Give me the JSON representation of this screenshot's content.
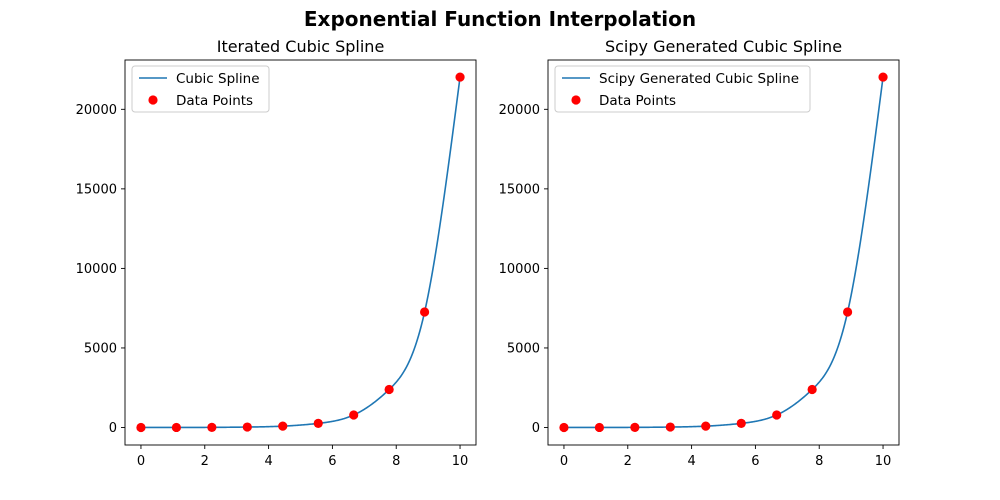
{
  "figure": {
    "title": "Exponential Function Interpolation"
  },
  "chart_data": [
    {
      "type": "line",
      "title": "Iterated Cubic Spline",
      "xlabel": "",
      "ylabel": "",
      "xlim": [
        -0.5,
        10.5
      ],
      "ylim": [
        -1100,
        23100
      ],
      "xticks": [
        0,
        2,
        4,
        6,
        8,
        10
      ],
      "yticks": [
        0,
        5000,
        10000,
        15000,
        20000
      ],
      "grid": false,
      "legend": {
        "position": "upper-left",
        "entries": [
          "Cubic Spline",
          "Data Points"
        ]
      },
      "series": [
        {
          "name": "Cubic Spline",
          "kind": "line",
          "color": "#1f77b4",
          "interpolates": "Data Points"
        },
        {
          "name": "Data Points",
          "kind": "scatter",
          "color": "#ff0000",
          "x": [
            0,
            1.111,
            2.222,
            3.333,
            4.444,
            5.556,
            6.667,
            7.778,
            8.889,
            10
          ],
          "y": [
            1,
            3,
            9,
            28,
            85,
            259,
            786,
            2389,
            7259,
            22026
          ]
        }
      ]
    },
    {
      "type": "line",
      "title": "Scipy Generated Cubic Spline",
      "xlabel": "",
      "ylabel": "",
      "xlim": [
        -0.5,
        10.5
      ],
      "ylim": [
        -1100,
        23100
      ],
      "xticks": [
        0,
        2,
        4,
        6,
        8,
        10
      ],
      "yticks": [
        0,
        5000,
        10000,
        15000,
        20000
      ],
      "grid": false,
      "legend": {
        "position": "upper-left",
        "entries": [
          "Scipy Generated Cubic Spline",
          "Data Points"
        ]
      },
      "series": [
        {
          "name": "Scipy Generated Cubic Spline",
          "kind": "line",
          "color": "#1f77b4",
          "interpolates": "Data Points"
        },
        {
          "name": "Data Points",
          "kind": "scatter",
          "color": "#ff0000",
          "x": [
            0,
            1.111,
            2.222,
            3.333,
            4.444,
            5.556,
            6.667,
            7.778,
            8.889,
            10
          ],
          "y": [
            1,
            3,
            9,
            28,
            85,
            259,
            786,
            2389,
            7259,
            22026
          ]
        }
      ]
    }
  ]
}
